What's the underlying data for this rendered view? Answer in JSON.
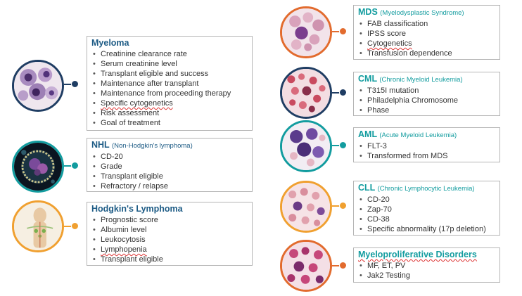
{
  "colors": {
    "navy": "#1f3d63",
    "teal": "#129c9f",
    "orange": "#f0a030",
    "red": "#e26b2e"
  },
  "myeloma": {
    "title": "Myeloma",
    "items": [
      "Creatinine clearance rate",
      "Serum creatinine level",
      "Transplant eligible and success",
      "Maintenance after transplant",
      "Maintenance from proceeding therapy",
      "Specific cytogenetics",
      "Risk assessment",
      "Goal of treatment"
    ]
  },
  "nhl": {
    "title": "NHL",
    "subtitle": "(Non-Hodgkin's lymphoma)",
    "items": [
      "CD-20",
      "Grade",
      "Transplant eligible",
      "Refractory / relapse"
    ]
  },
  "hodgkins": {
    "title": "Hodgkin's Lymphoma",
    "items": [
      "Prognostic score",
      "Albumin level",
      "Leukocytosis",
      "Lymphopenia",
      "Transplant eligible"
    ]
  },
  "mds": {
    "title": "MDS",
    "subtitle": "(Myelodysplastic Syndrome)",
    "items": [
      "FAB classification",
      "IPSS score",
      "Cytogenetics",
      "Transfusion dependence"
    ]
  },
  "cml": {
    "title": "CML",
    "subtitle": "(Chronic Myeloid Leukemia)",
    "items": [
      "T315I mutation",
      "Philadelphia Chromosome",
      "Phase"
    ]
  },
  "aml": {
    "title": "AML",
    "subtitle": "(Acute Myeloid Leukemia)",
    "items": [
      "FLT-3",
      "Transformed from MDS"
    ]
  },
  "cll": {
    "title": "CLL",
    "subtitle": "(Chronic Lymphocytic Leukemia)",
    "items": [
      "CD-20",
      "Zap-70",
      "CD-38",
      "Specific abnormality (17p deletion)"
    ]
  },
  "mpd": {
    "title": "Myeloproliferative Disorders",
    "items": [
      "MF, ET, PV",
      "Jak2 Testing"
    ]
  }
}
